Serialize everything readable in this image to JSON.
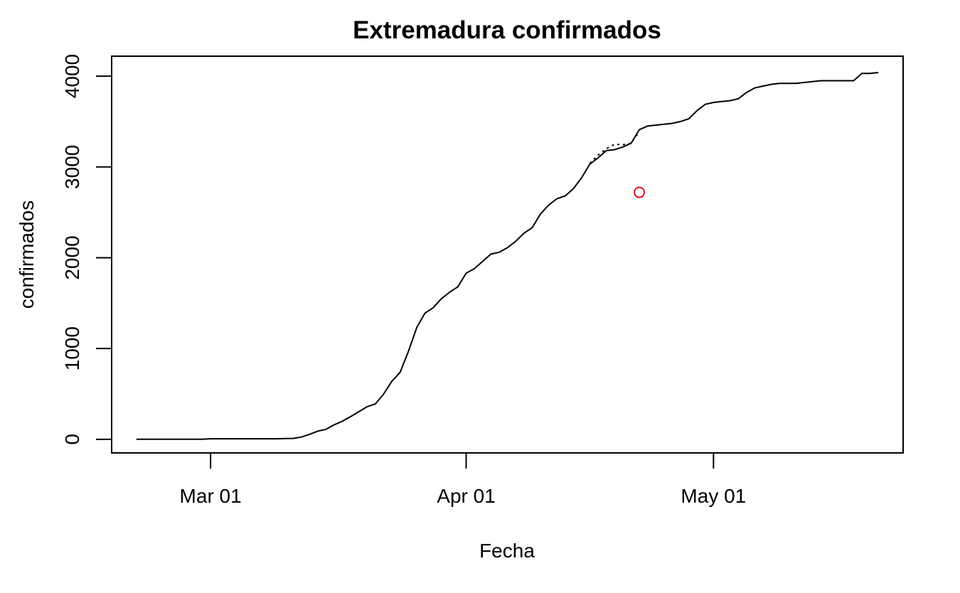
{
  "chart_data": {
    "type": "line",
    "title": "Extremadura confirmados",
    "xlabel": "Fecha",
    "ylabel": "confirmados",
    "x_ticks": [
      {
        "label": "Mar 01",
        "date": "2020-03-01"
      },
      {
        "label": "Apr 01",
        "date": "2020-04-01"
      },
      {
        "label": "May 01",
        "date": "2020-05-01"
      }
    ],
    "y_ticks": [
      0,
      1000,
      2000,
      3000,
      4000
    ],
    "xlim": [
      "2020-02-18",
      "2020-05-24"
    ],
    "ylim": [
      -150,
      4220
    ],
    "grid": false,
    "colors": {
      "line": "#000000",
      "point": "#e8101a"
    },
    "series": [
      {
        "style": "dotted",
        "x": [
          "2020-04-16",
          "2020-04-17",
          "2020-04-18",
          "2020-04-19",
          "2020-04-20",
          "2020-04-21",
          "2020-04-22"
        ],
        "y": [
          3040,
          3130,
          3200,
          3250,
          3245,
          3260,
          3390
        ]
      },
      {
        "style": "solid",
        "x": [
          "2020-02-21",
          "2020-02-22",
          "2020-02-23",
          "2020-02-24",
          "2020-02-25",
          "2020-02-26",
          "2020-02-27",
          "2020-02-28",
          "2020-02-29",
          "2020-03-01",
          "2020-03-02",
          "2020-03-03",
          "2020-03-04",
          "2020-03-05",
          "2020-03-06",
          "2020-03-07",
          "2020-03-08",
          "2020-03-09",
          "2020-03-10",
          "2020-03-11",
          "2020-03-12",
          "2020-03-13",
          "2020-03-14",
          "2020-03-15",
          "2020-03-16",
          "2020-03-17",
          "2020-03-18",
          "2020-03-19",
          "2020-03-20",
          "2020-03-21",
          "2020-03-22",
          "2020-03-23",
          "2020-03-24",
          "2020-03-25",
          "2020-03-26",
          "2020-03-27",
          "2020-03-28",
          "2020-03-29",
          "2020-03-30",
          "2020-03-31",
          "2020-04-01",
          "2020-04-02",
          "2020-04-03",
          "2020-04-04",
          "2020-04-05",
          "2020-04-06",
          "2020-04-07",
          "2020-04-08",
          "2020-04-09",
          "2020-04-10",
          "2020-04-11",
          "2020-04-12",
          "2020-04-13",
          "2020-04-14",
          "2020-04-15",
          "2020-04-16",
          "2020-04-17",
          "2020-04-18",
          "2020-04-19",
          "2020-04-20",
          "2020-04-21",
          "2020-04-22",
          "2020-04-23",
          "2020-04-24",
          "2020-04-25",
          "2020-04-26",
          "2020-04-27",
          "2020-04-28",
          "2020-04-29",
          "2020-04-30",
          "2020-05-01",
          "2020-05-02",
          "2020-05-03",
          "2020-05-04",
          "2020-05-05",
          "2020-05-06",
          "2020-05-07",
          "2020-05-08",
          "2020-05-09",
          "2020-05-10",
          "2020-05-11",
          "2020-05-12",
          "2020-05-13",
          "2020-05-14",
          "2020-05-15",
          "2020-05-16",
          "2020-05-17",
          "2020-05-18",
          "2020-05-19",
          "2020-05-20",
          "2020-05-21"
        ],
        "y": [
          0,
          0,
          0,
          0,
          0,
          0,
          0,
          0,
          0,
          6,
          6,
          6,
          6,
          6,
          6,
          6,
          6,
          6,
          8,
          10,
          25,
          55,
          90,
          110,
          160,
          200,
          250,
          305,
          360,
          390,
          500,
          640,
          740,
          970,
          1230,
          1390,
          1450,
          1550,
          1620,
          1680,
          1830,
          1880,
          1960,
          2040,
          2060,
          2110,
          2180,
          2270,
          2330,
          2480,
          2580,
          2650,
          2680,
          2760,
          2880,
          3030,
          3100,
          3180,
          3190,
          3220,
          3260,
          3410,
          3450,
          3460,
          3470,
          3480,
          3500,
          3530,
          3620,
          3690,
          3710,
          3720,
          3730,
          3750,
          3820,
          3870,
          3890,
          3910,
          3920,
          3920,
          3920,
          3930,
          3940,
          3950,
          3950,
          3950,
          3950,
          3950,
          4030,
          4030,
          4040
        ]
      }
    ],
    "points": [
      {
        "x": "2020-04-22",
        "y": 2720
      }
    ]
  }
}
